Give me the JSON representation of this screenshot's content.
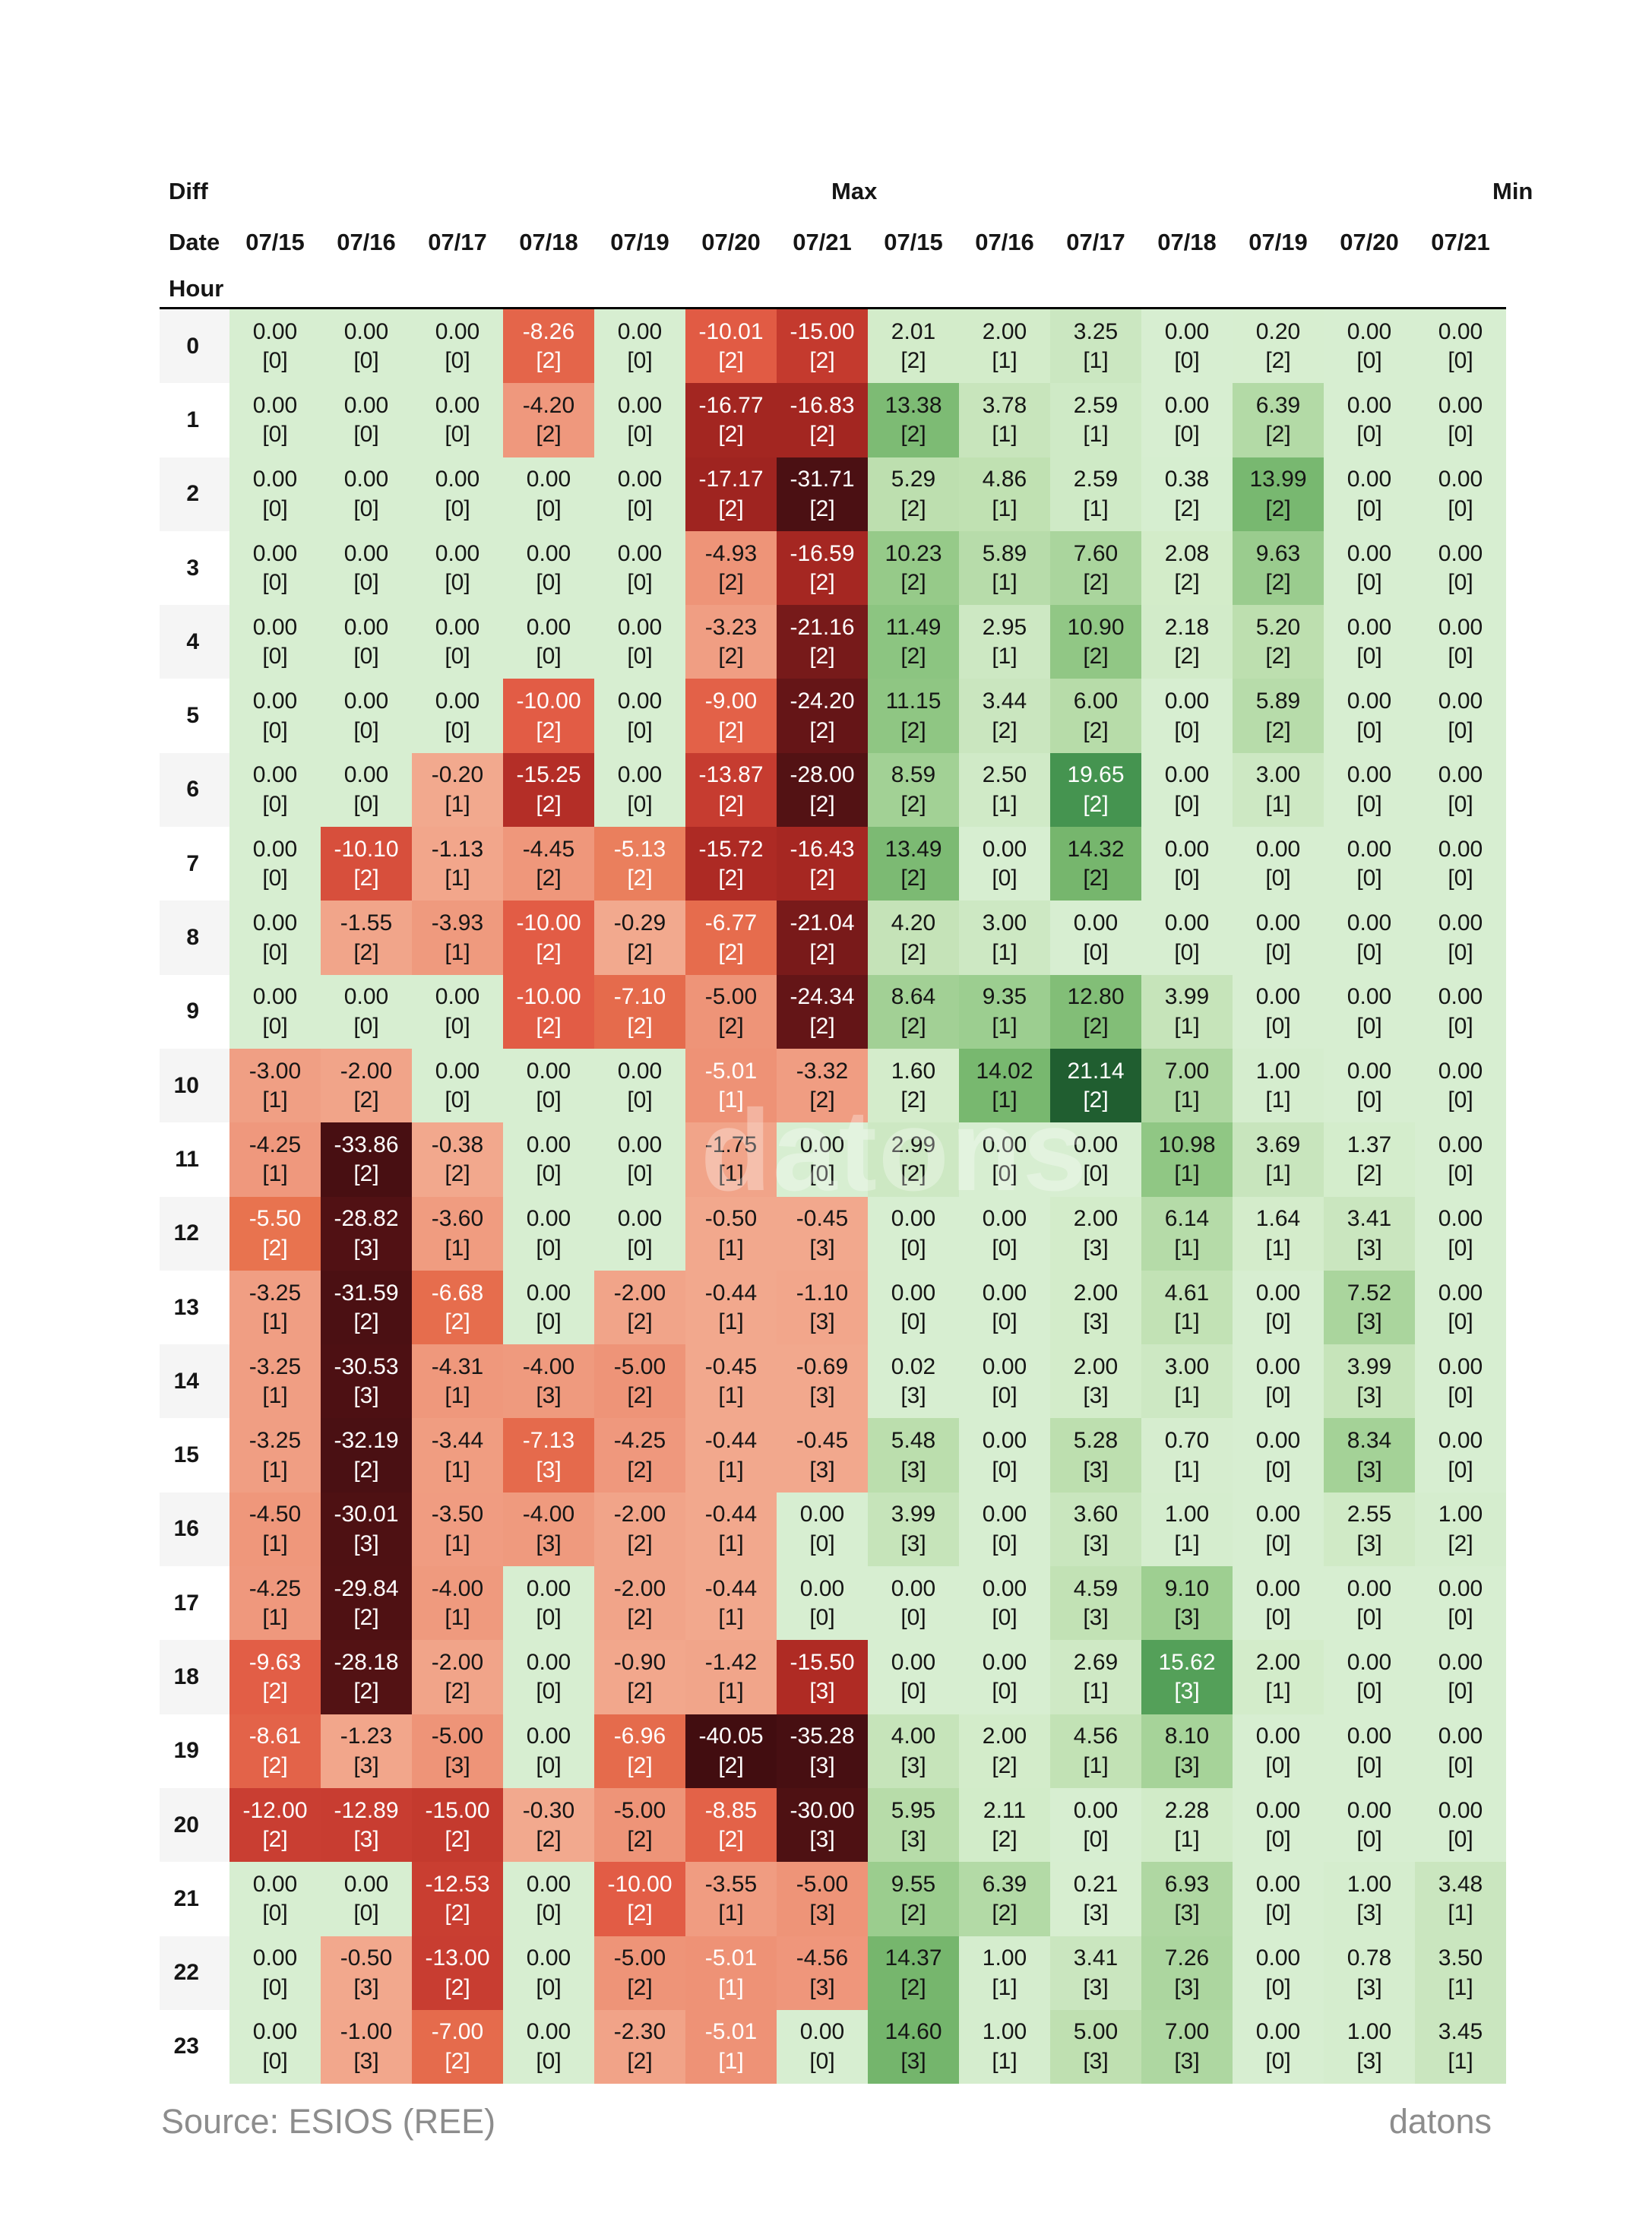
{
  "header": {
    "section_labels": {
      "diff": "Diff",
      "max": "Max",
      "min": "Min"
    },
    "date_label": "Date",
    "hour_label": "Hour",
    "diff_dates": [
      "07/15",
      "07/16",
      "07/17",
      "07/18",
      "07/19",
      "07/20",
      "07/21"
    ],
    "max_dates": [
      "07/15",
      "07/16",
      "07/17",
      "07/18",
      "07/19",
      "07/20",
      "07/21"
    ]
  },
  "footer": {
    "source": "Source: ESIOS (REE)",
    "brand": "datons"
  },
  "watermark": "datons",
  "chart_data": {
    "type": "heatmap",
    "title": "",
    "sections": [
      "Diff",
      "Max",
      "Min"
    ],
    "dates": [
      "07/15",
      "07/16",
      "07/17",
      "07/18",
      "07/19",
      "07/20",
      "07/21"
    ],
    "hours": [
      0,
      1,
      2,
      3,
      4,
      5,
      6,
      7,
      8,
      9,
      10,
      11,
      12,
      13,
      14,
      15,
      16,
      17,
      18,
      19,
      20,
      21,
      22,
      23
    ],
    "value_ranges": {
      "diff": [
        -40.05,
        0
      ],
      "max": [
        0,
        21.14
      ]
    },
    "diff": {
      "values": [
        [
          0,
          0,
          0,
          -8.26,
          0,
          -10.01,
          -15.0
        ],
        [
          0,
          0,
          0,
          -4.2,
          0,
          -16.77,
          -16.83
        ],
        [
          0,
          0,
          0,
          0,
          0,
          -17.17,
          -31.71
        ],
        [
          0,
          0,
          0,
          0,
          0,
          -4.93,
          -16.59
        ],
        [
          0,
          0,
          0,
          0,
          0,
          -3.23,
          -21.16
        ],
        [
          0,
          0,
          0,
          -10.0,
          0,
          -9.0,
          -24.2
        ],
        [
          0,
          0,
          -0.2,
          -15.25,
          0,
          -13.87,
          -28.0
        ],
        [
          0,
          -10.1,
          -1.13,
          -4.45,
          -5.13,
          -15.72,
          -16.43
        ],
        [
          0,
          -1.55,
          -3.93,
          -10.0,
          -0.29,
          -6.77,
          -21.04
        ],
        [
          0,
          0,
          0,
          -10.0,
          -7.1,
          -5.0,
          -24.34
        ],
        [
          -3.0,
          -2.0,
          0,
          0,
          0,
          -5.01,
          -3.32
        ],
        [
          -4.25,
          -33.86,
          -0.38,
          0,
          0,
          -1.75,
          0
        ],
        [
          -5.5,
          -28.82,
          -3.6,
          0,
          0,
          -0.5,
          -0.45
        ],
        [
          -3.25,
          -31.59,
          -6.68,
          0,
          -2.0,
          -0.44,
          -1.1
        ],
        [
          -3.25,
          -30.53,
          -4.31,
          -4.0,
          -5.0,
          -0.45,
          -0.69
        ],
        [
          -3.25,
          -32.19,
          -3.44,
          -7.13,
          -4.25,
          -0.44,
          -0.45
        ],
        [
          -4.5,
          -30.01,
          -3.5,
          -4.0,
          -2.0,
          -0.44,
          0
        ],
        [
          -4.25,
          -29.84,
          -4.0,
          0,
          -2.0,
          -0.44,
          0
        ],
        [
          -9.63,
          -28.18,
          -2.0,
          0,
          -0.9,
          -1.42,
          -15.5
        ],
        [
          -8.61,
          -1.23,
          -5.0,
          0,
          -6.96,
          -40.05,
          -35.28
        ],
        [
          -12.0,
          -12.89,
          -15.0,
          -0.3,
          -5.0,
          -8.85,
          -30.0
        ],
        [
          0,
          0,
          -12.53,
          0,
          -10.0,
          -3.55,
          -5.0
        ],
        [
          0,
          -0.5,
          -13.0,
          0,
          -5.0,
          -5.01,
          -4.56
        ],
        [
          0,
          -1.0,
          -7.0,
          0,
          -2.3,
          -5.01,
          0
        ]
      ],
      "counts": [
        [
          0,
          0,
          0,
          2,
          0,
          2,
          2
        ],
        [
          0,
          0,
          0,
          2,
          0,
          2,
          2
        ],
        [
          0,
          0,
          0,
          0,
          0,
          2,
          2
        ],
        [
          0,
          0,
          0,
          0,
          0,
          2,
          2
        ],
        [
          0,
          0,
          0,
          0,
          0,
          2,
          2
        ],
        [
          0,
          0,
          0,
          2,
          0,
          2,
          2
        ],
        [
          0,
          0,
          1,
          2,
          0,
          2,
          2
        ],
        [
          0,
          2,
          1,
          2,
          2,
          2,
          2
        ],
        [
          0,
          2,
          1,
          2,
          2,
          2,
          2
        ],
        [
          0,
          0,
          0,
          2,
          2,
          2,
          2
        ],
        [
          1,
          2,
          0,
          0,
          0,
          1,
          2
        ],
        [
          1,
          2,
          2,
          0,
          0,
          1,
          0
        ],
        [
          2,
          3,
          1,
          0,
          0,
          1,
          3
        ],
        [
          1,
          2,
          2,
          0,
          2,
          1,
          3
        ],
        [
          1,
          3,
          1,
          3,
          2,
          1,
          3
        ],
        [
          1,
          2,
          1,
          3,
          2,
          1,
          3
        ],
        [
          1,
          3,
          1,
          3,
          2,
          1,
          0
        ],
        [
          1,
          2,
          1,
          0,
          2,
          1,
          0
        ],
        [
          2,
          2,
          2,
          0,
          2,
          1,
          3
        ],
        [
          2,
          3,
          3,
          0,
          2,
          2,
          3
        ],
        [
          2,
          3,
          2,
          2,
          2,
          2,
          3
        ],
        [
          0,
          0,
          2,
          0,
          2,
          1,
          3
        ],
        [
          0,
          3,
          2,
          0,
          2,
          1,
          3
        ],
        [
          0,
          3,
          2,
          0,
          2,
          1,
          0
        ]
      ]
    },
    "max": {
      "values": [
        [
          2.01,
          2.0,
          3.25,
          0,
          0.2,
          0,
          0
        ],
        [
          13.38,
          3.78,
          2.59,
          0,
          6.39,
          0,
          0
        ],
        [
          5.29,
          4.86,
          2.59,
          0.38,
          13.99,
          0,
          0
        ],
        [
          10.23,
          5.89,
          7.6,
          2.08,
          9.63,
          0,
          0
        ],
        [
          11.49,
          2.95,
          10.9,
          2.18,
          5.2,
          0,
          0
        ],
        [
          11.15,
          3.44,
          6.0,
          0,
          5.89,
          0,
          0
        ],
        [
          8.59,
          2.5,
          19.65,
          0,
          3.0,
          0,
          0
        ],
        [
          13.49,
          0,
          14.32,
          0,
          0,
          0,
          0
        ],
        [
          4.2,
          3.0,
          0,
          0,
          0,
          0,
          0
        ],
        [
          8.64,
          9.35,
          12.8,
          3.99,
          0,
          0,
          0
        ],
        [
          1.6,
          14.02,
          21.14,
          7.0,
          1.0,
          0,
          0
        ],
        [
          2.99,
          0,
          0,
          10.98,
          3.69,
          1.37,
          0
        ],
        [
          0,
          0,
          2.0,
          6.14,
          1.64,
          3.41,
          0
        ],
        [
          0,
          0,
          2.0,
          4.61,
          0,
          7.52,
          0
        ],
        [
          0.02,
          0,
          2.0,
          3.0,
          0,
          3.99,
          0
        ],
        [
          5.48,
          0,
          5.28,
          0.7,
          0,
          8.34,
          0
        ],
        [
          3.99,
          0,
          3.6,
          1.0,
          0,
          2.55,
          1.0
        ],
        [
          0,
          0,
          4.59,
          9.1,
          0,
          0,
          0
        ],
        [
          0,
          0,
          2.69,
          15.62,
          2.0,
          0,
          0
        ],
        [
          4.0,
          2.0,
          4.56,
          8.1,
          0,
          0,
          0
        ],
        [
          5.95,
          2.11,
          0,
          2.28,
          0,
          0,
          0
        ],
        [
          9.55,
          6.39,
          0.21,
          6.93,
          0,
          1.0,
          3.48
        ],
        [
          14.37,
          1.0,
          3.41,
          7.26,
          0,
          0.78,
          3.5
        ],
        [
          14.6,
          1.0,
          5.0,
          7.0,
          0,
          1.0,
          3.45
        ]
      ],
      "counts": [
        [
          2,
          1,
          1,
          0,
          2,
          0,
          0
        ],
        [
          2,
          1,
          1,
          0,
          2,
          0,
          0
        ],
        [
          2,
          1,
          1,
          2,
          2,
          0,
          0
        ],
        [
          2,
          1,
          2,
          2,
          2,
          0,
          0
        ],
        [
          2,
          1,
          2,
          2,
          2,
          0,
          0
        ],
        [
          2,
          2,
          2,
          0,
          2,
          0,
          0
        ],
        [
          2,
          1,
          2,
          0,
          1,
          0,
          0
        ],
        [
          2,
          0,
          2,
          0,
          0,
          0,
          0
        ],
        [
          2,
          1,
          0,
          0,
          0,
          0,
          0
        ],
        [
          2,
          1,
          2,
          1,
          0,
          0,
          0
        ],
        [
          2,
          1,
          2,
          1,
          1,
          0,
          0
        ],
        [
          2,
          0,
          0,
          1,
          1,
          2,
          0
        ],
        [
          0,
          0,
          3,
          1,
          1,
          3,
          0
        ],
        [
          0,
          0,
          3,
          1,
          0,
          3,
          0
        ],
        [
          3,
          0,
          3,
          1,
          0,
          3,
          0
        ],
        [
          3,
          0,
          3,
          1,
          0,
          3,
          0
        ],
        [
          3,
          0,
          3,
          1,
          0,
          3,
          2
        ],
        [
          0,
          0,
          3,
          3,
          0,
          0,
          0
        ],
        [
          0,
          0,
          1,
          3,
          1,
          0,
          0
        ],
        [
          3,
          2,
          1,
          3,
          0,
          0,
          0
        ],
        [
          3,
          2,
          0,
          1,
          0,
          0,
          0
        ],
        [
          2,
          2,
          3,
          3,
          0,
          3,
          1
        ],
        [
          2,
          1,
          3,
          3,
          0,
          3,
          1
        ],
        [
          3,
          1,
          3,
          3,
          0,
          3,
          1
        ]
      ]
    },
    "colors": {
      "white_text_red_max": -5.005,
      "white_text_green_min": 15,
      "red_stops": [
        [
          0.2,
          "#f2a98e"
        ],
        [
          2.5,
          "#f1a287"
        ],
        [
          5.0,
          "#ee9478"
        ],
        [
          5.2,
          "#e8744f"
        ],
        [
          8.0,
          "#e4664b"
        ],
        [
          10.0,
          "#e25c45"
        ],
        [
          10.2,
          "#cc4133"
        ],
        [
          13.0,
          "#c83d31"
        ],
        [
          15.0,
          "#c43a2e"
        ],
        [
          15.3,
          "#b12c25"
        ],
        [
          17.2,
          "#9f2420"
        ],
        [
          19.0,
          "#8c1f1d"
        ],
        [
          21.2,
          "#771a1a"
        ],
        [
          24.3,
          "#641517"
        ],
        [
          28.0,
          "#531214"
        ],
        [
          31.0,
          "#4c1013"
        ],
        [
          34.0,
          "#480f12"
        ],
        [
          40.1,
          "#420d10"
        ]
      ],
      "green_stops": [
        [
          0,
          "#d7eed1"
        ],
        [
          2,
          "#d3ecca"
        ],
        [
          3,
          "#cde8c3"
        ],
        [
          5,
          "#bfe0b1"
        ],
        [
          7,
          "#aed7a1"
        ],
        [
          9,
          "#9fcf92"
        ],
        [
          11,
          "#90c784"
        ],
        [
          13,
          "#80bd76"
        ],
        [
          14.7,
          "#73b46b"
        ],
        [
          15.1,
          "#56a15a"
        ],
        [
          19.7,
          "#459450"
        ],
        [
          20.6,
          "#2f7339"
        ],
        [
          21.2,
          "#1e5c2f"
        ]
      ]
    }
  }
}
